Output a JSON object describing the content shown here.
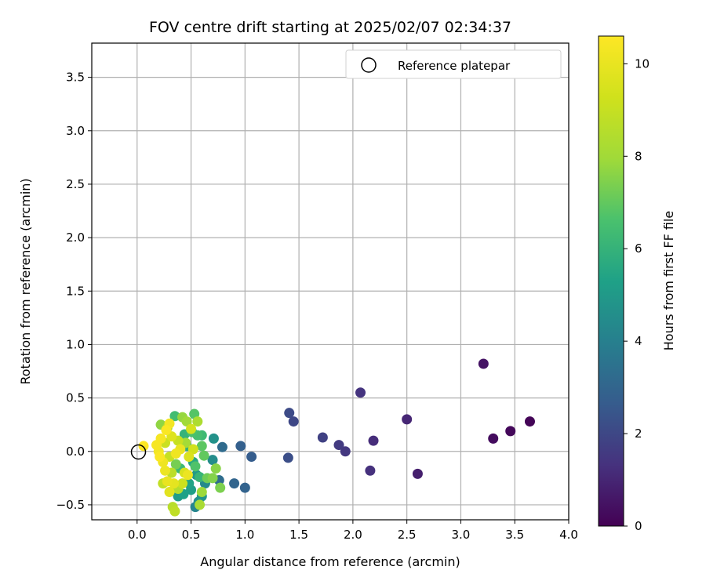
{
  "chart_data": {
    "type": "scatter",
    "title": "FOV centre drift starting at 2025/02/07 02:34:37",
    "xlabel": "Angular distance from reference (arcmin)",
    "ylabel": "Rotation from reference (arcmin)",
    "xlim": [
      -0.42,
      4.0
    ],
    "ylim": [
      -0.64,
      3.82
    ],
    "x_ticks": [
      "0.0",
      "0.5",
      "1.0",
      "1.5",
      "2.0",
      "2.5",
      "3.0",
      "3.5",
      "4.0"
    ],
    "y_ticks": [
      "−0.5",
      "0.0",
      "0.5",
      "1.0",
      "1.5",
      "2.0",
      "2.5",
      "3.0",
      "3.5"
    ],
    "grid": true,
    "legend": {
      "placement": "top-right",
      "entries": [
        "Reference platepar"
      ]
    },
    "reference_point": {
      "x": 0.0,
      "y": 0.0,
      "label": "Reference platepar"
    },
    "colorbar": {
      "label": "Hours from first FF file",
      "colormap": "viridis",
      "range": [
        0,
        10.6
      ],
      "ticks": [
        "0",
        "2",
        "4",
        "6",
        "8",
        "10"
      ]
    },
    "series": [
      {
        "points": [
          {
            "x": 3.64,
            "y": 0.28,
            "c": 0.1
          },
          {
            "x": 3.46,
            "y": 0.19,
            "c": 0.2
          },
          {
            "x": 3.3,
            "y": 0.12,
            "c": 0.3
          },
          {
            "x": 3.21,
            "y": 0.82,
            "c": 0.5
          },
          {
            "x": 2.6,
            "y": -0.21,
            "c": 0.8
          },
          {
            "x": 2.5,
            "y": 0.3,
            "c": 1.0
          },
          {
            "x": 2.19,
            "y": 0.1,
            "c": 1.2
          },
          {
            "x": 2.16,
            "y": -0.18,
            "c": 1.3
          },
          {
            "x": 2.07,
            "y": 0.55,
            "c": 1.4
          },
          {
            "x": 1.93,
            "y": 0.0,
            "c": 1.5
          },
          {
            "x": 1.87,
            "y": 0.06,
            "c": 1.6
          },
          {
            "x": 1.72,
            "y": 0.13,
            "c": 1.8
          },
          {
            "x": 1.45,
            "y": 0.28,
            "c": 2.0
          },
          {
            "x": 1.41,
            "y": 0.36,
            "c": 2.1
          },
          {
            "x": 1.4,
            "y": -0.06,
            "c": 2.2
          },
          {
            "x": 1.06,
            "y": -0.05,
            "c": 2.7
          },
          {
            "x": 0.96,
            "y": 0.05,
            "c": 2.8
          },
          {
            "x": 1.0,
            "y": -0.34,
            "c": 2.9
          },
          {
            "x": 0.9,
            "y": -0.3,
            "c": 3.0
          },
          {
            "x": 0.79,
            "y": 0.04,
            "c": 3.2
          },
          {
            "x": 0.76,
            "y": -0.27,
            "c": 3.3
          },
          {
            "x": 0.7,
            "y": -0.08,
            "c": 4.5
          },
          {
            "x": 0.71,
            "y": 0.12,
            "c": 4.7
          },
          {
            "x": 0.63,
            "y": -0.3,
            "c": 4.4
          },
          {
            "x": 0.54,
            "y": -0.52,
            "c": 4.2
          },
          {
            "x": 0.57,
            "y": -0.47,
            "c": 4.6
          },
          {
            "x": 0.6,
            "y": -0.42,
            "c": 4.8
          },
          {
            "x": 0.55,
            "y": -0.22,
            "c": 5.0
          },
          {
            "x": 0.5,
            "y": -0.36,
            "c": 5.2
          },
          {
            "x": 0.48,
            "y": -0.3,
            "c": 5.4
          },
          {
            "x": 0.52,
            "y": -0.1,
            "c": 5.6
          },
          {
            "x": 0.46,
            "y": 0.05,
            "c": 5.8
          },
          {
            "x": 0.44,
            "y": 0.16,
            "c": 6.0
          },
          {
            "x": 0.43,
            "y": -0.4,
            "c": 5.3
          },
          {
            "x": 0.38,
            "y": -0.42,
            "c": 5.1
          },
          {
            "x": 0.4,
            "y": -0.16,
            "c": 6.2
          },
          {
            "x": 0.35,
            "y": 0.33,
            "c": 6.4
          },
          {
            "x": 0.53,
            "y": 0.35,
            "c": 6.8
          },
          {
            "x": 0.51,
            "y": 0.18,
            "c": 6.6
          },
          {
            "x": 0.56,
            "y": 0.15,
            "c": 6.5
          },
          {
            "x": 0.6,
            "y": 0.15,
            "c": 6.3
          },
          {
            "x": 0.6,
            "y": 0.05,
            "c": 6.9
          },
          {
            "x": 0.62,
            "y": -0.04,
            "c": 7.0
          },
          {
            "x": 0.65,
            "y": -0.25,
            "c": 7.2
          },
          {
            "x": 0.7,
            "y": -0.25,
            "c": 7.5
          },
          {
            "x": 0.73,
            "y": -0.16,
            "c": 7.6
          },
          {
            "x": 0.77,
            "y": -0.34,
            "c": 7.4
          },
          {
            "x": 0.6,
            "y": -0.38,
            "c": 7.9
          },
          {
            "x": 0.58,
            "y": -0.5,
            "c": 8.2
          },
          {
            "x": 0.42,
            "y": 0.32,
            "c": 7.8
          },
          {
            "x": 0.46,
            "y": 0.28,
            "c": 8.0
          },
          {
            "x": 0.56,
            "y": 0.28,
            "c": 8.3
          },
          {
            "x": 0.22,
            "y": 0.25,
            "c": 7.7
          },
          {
            "x": 0.28,
            "y": 0.22,
            "c": 8.4
          },
          {
            "x": 0.33,
            "y": -0.52,
            "c": 8.6
          },
          {
            "x": 0.35,
            "y": -0.56,
            "c": 8.8
          },
          {
            "x": 0.38,
            "y": -0.35,
            "c": 8.5
          },
          {
            "x": 0.24,
            "y": -0.3,
            "c": 8.9
          },
          {
            "x": 0.32,
            "y": -0.2,
            "c": 8.7
          },
          {
            "x": 0.3,
            "y": -0.05,
            "c": 9.0
          },
          {
            "x": 0.26,
            "y": 0.08,
            "c": 9.1
          },
          {
            "x": 0.5,
            "y": 0.21,
            "c": 9.4
          },
          {
            "x": 0.52,
            "y": 0.02,
            "c": 9.3
          },
          {
            "x": 0.48,
            "y": -0.05,
            "c": 9.6
          },
          {
            "x": 0.44,
            "y": -0.2,
            "c": 9.5
          },
          {
            "x": 0.42,
            "y": -0.3,
            "c": 9.2
          },
          {
            "x": 0.3,
            "y": -0.38,
            "c": 9.8
          },
          {
            "x": 0.28,
            "y": -0.28,
            "c": 10.0
          },
          {
            "x": 0.26,
            "y": -0.18,
            "c": 10.1
          },
          {
            "x": 0.24,
            "y": -0.1,
            "c": 10.2
          },
          {
            "x": 0.2,
            "y": 0.0,
            "c": 10.3
          },
          {
            "x": 0.22,
            "y": 0.12,
            "c": 10.4
          },
          {
            "x": 0.27,
            "y": 0.2,
            "c": 10.5
          },
          {
            "x": 0.3,
            "y": 0.26,
            "c": 10.3
          },
          {
            "x": 0.18,
            "y": 0.06,
            "c": 10.4
          },
          {
            "x": 0.06,
            "y": 0.05,
            "c": 10.6
          },
          {
            "x": 0.36,
            "y": -0.02,
            "c": 10.2
          },
          {
            "x": 0.4,
            "y": 0.02,
            "c": 10.0
          },
          {
            "x": 0.34,
            "y": -0.3,
            "c": 9.9
          },
          {
            "x": 0.47,
            "y": -0.22,
            "c": 10.1
          },
          {
            "x": 0.21,
            "y": -0.05,
            "c": 10.5
          },
          {
            "x": 0.32,
            "y": 0.14,
            "c": 9.7
          },
          {
            "x": 0.38,
            "y": 0.1,
            "c": 9.0
          },
          {
            "x": 0.45,
            "y": 0.08,
            "c": 8.1
          },
          {
            "x": 0.36,
            "y": -0.12,
            "c": 7.3
          },
          {
            "x": 0.54,
            "y": -0.14,
            "c": 6.7
          },
          {
            "x": 0.58,
            "y": -0.24,
            "c": 6.1
          }
        ]
      }
    ]
  }
}
